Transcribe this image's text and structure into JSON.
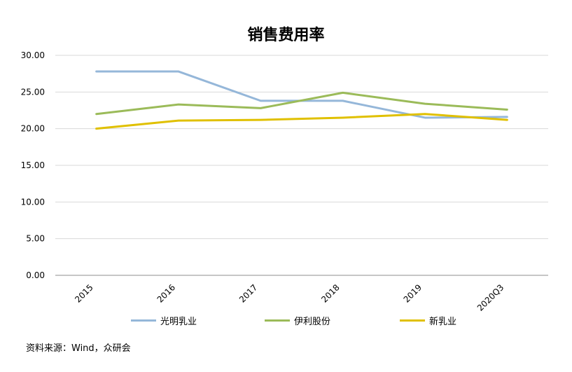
{
  "chart_data": {
    "type": "line",
    "title": "销售费用率",
    "categories": [
      "2015",
      "2016",
      "2017",
      "2018",
      "2019",
      "2020Q3"
    ],
    "ylim": [
      0,
      30
    ],
    "y_ticks": [
      "0.00",
      "5.00",
      "10.00",
      "15.00",
      "20.00",
      "25.00",
      "30.00"
    ],
    "grid": true,
    "legend_position": "bottom",
    "series": [
      {
        "name": "光明乳业",
        "color": "#95b7d9",
        "values": [
          27.8,
          27.8,
          23.8,
          23.8,
          21.5,
          21.6
        ]
      },
      {
        "name": "伊利股份",
        "color": "#9bbb59",
        "values": [
          22.0,
          23.3,
          22.8,
          24.9,
          23.4,
          22.6
        ]
      },
      {
        "name": "新乳业",
        "color": "#e0c000",
        "values": [
          20.0,
          21.1,
          21.2,
          21.5,
          22.0,
          21.2
        ]
      }
    ]
  },
  "footer": {
    "source": "资料来源：Wind，众研会"
  }
}
